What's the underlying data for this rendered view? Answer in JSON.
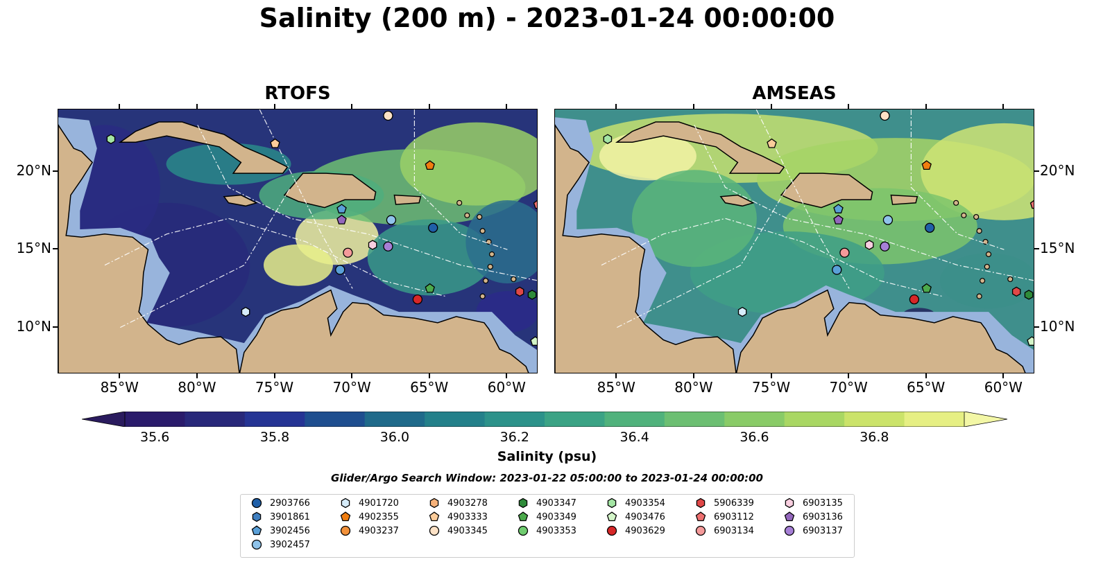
{
  "title": "Salinity (200 m) - 2023-01-24 00:00:00",
  "panels": [
    {
      "title": "RTOFS"
    },
    {
      "title": "AMSEAS"
    }
  ],
  "map_extent": {
    "lon": [
      -89,
      -58
    ],
    "lat": [
      7,
      24
    ]
  },
  "lon_ticks": [
    "85°W",
    "80°W",
    "75°W",
    "70°W",
    "65°W",
    "60°W"
  ],
  "lat_ticks": [
    "20°N",
    "15°N",
    "10°N"
  ],
  "colorbar": {
    "range": [
      35.55,
      36.95
    ],
    "step": 0.1,
    "ticks": [
      "35.6",
      "35.8",
      "36.0",
      "36.2",
      "36.4",
      "36.6",
      "36.8"
    ],
    "label": "Salinity (psu)",
    "colors": [
      "#2a1b6b",
      "#28287a",
      "#253494",
      "#1e4e8f",
      "#1f6a8a",
      "#23808a",
      "#2c928a",
      "#3ba385",
      "#50b27c",
      "#6cbf72",
      "#89cb67",
      "#a9d763",
      "#cbe36a",
      "#e6ef83"
    ],
    "extend_low": "#2a1b5e",
    "extend_high": "#f3f7a6"
  },
  "search_window": "Glider/Argo Search Window: 2023-01-22 05:00:00 to 2023-01-24 00:00:00",
  "colors": {
    "land": "#d2b48c",
    "shallow": "#98b4dc",
    "ocean_low": "#2a1b6b",
    "ocean_high": "#f3f7a6"
  },
  "platforms": [
    {
      "id": "2903766",
      "marker": "circle",
      "color": "#1f5fa8",
      "lon": -64.8,
      "lat": 16.4
    },
    {
      "id": "3901861",
      "marker": "hexagon",
      "color": "#3f7fc0",
      "lon": null,
      "lat": null
    },
    {
      "id": "3902456",
      "marker": "pentagon",
      "color": "#5aa0d8",
      "lon": -70.7,
      "lat": 17.6
    },
    {
      "id": "3902457",
      "marker": "circle",
      "color": "#8fc3ea",
      "lon": -67.5,
      "lat": 16.9
    },
    {
      "id": "4901720",
      "marker": "hexagon",
      "color": "#d6ecfa",
      "lon": -76.9,
      "lat": 11.0
    },
    {
      "id": "4902355",
      "marker": "pentagon",
      "color": "#f07d10",
      "lon": -65.0,
      "lat": 20.4
    },
    {
      "id": "4903237",
      "marker": "circle",
      "color": "#f2913a",
      "lon": null,
      "lat": null
    },
    {
      "id": "4903278",
      "marker": "hexagon",
      "color": "#f7b27a",
      "lon": null,
      "lat": null
    },
    {
      "id": "4903333",
      "marker": "pentagon",
      "color": "#fbcc9a",
      "lon": -75.0,
      "lat": 21.8
    },
    {
      "id": "4903345",
      "marker": "circle",
      "color": "#fde2c6",
      "lon": -67.7,
      "lat": 23.6
    },
    {
      "id": "4903347",
      "marker": "hexagon",
      "color": "#2e8b3a",
      "lon": -58.4,
      "lat": 12.1
    },
    {
      "id": "4903349",
      "marker": "pentagon",
      "color": "#4caa4c",
      "lon": -65.0,
      "lat": 12.5
    },
    {
      "id": "4903353",
      "marker": "circle",
      "color": "#6fcc6f",
      "lon": null,
      "lat": null
    },
    {
      "id": "4903354",
      "marker": "hexagon",
      "color": "#a4e5a4",
      "lon": -85.6,
      "lat": 22.1
    },
    {
      "id": "4903476",
      "marker": "pentagon",
      "color": "#d3f5c8",
      "lon": -58.2,
      "lat": 9.1
    },
    {
      "id": "4903629",
      "marker": "circle",
      "color": "#d62728",
      "lon": -65.8,
      "lat": 11.8
    },
    {
      "id": "5906339",
      "marker": "hexagon",
      "color": "#e04848",
      "lon": -59.2,
      "lat": 12.3
    },
    {
      "id": "6903112",
      "marker": "pentagon",
      "color": "#ee7070",
      "lon": -58.0,
      "lat": 17.9
    },
    {
      "id": "6903134",
      "marker": "circle",
      "color": "#f49a9a",
      "lon": -70.3,
      "lat": 14.8
    },
    {
      "id": "6903135",
      "marker": "hexagon",
      "color": "#f9cfe0",
      "lon": -68.7,
      "lat": 15.3
    },
    {
      "id": "6903136",
      "marker": "pentagon",
      "color": "#9467bd",
      "lon": -70.7,
      "lat": 16.9
    },
    {
      "id": "6903137",
      "marker": "circle",
      "color": "#a67fd6",
      "lon": -67.7,
      "lat": 15.2
    }
  ],
  "extra_markers": [
    {
      "marker": "circle",
      "color": "#5aa0d8",
      "lon": -70.8,
      "lat": 13.7
    }
  ]
}
